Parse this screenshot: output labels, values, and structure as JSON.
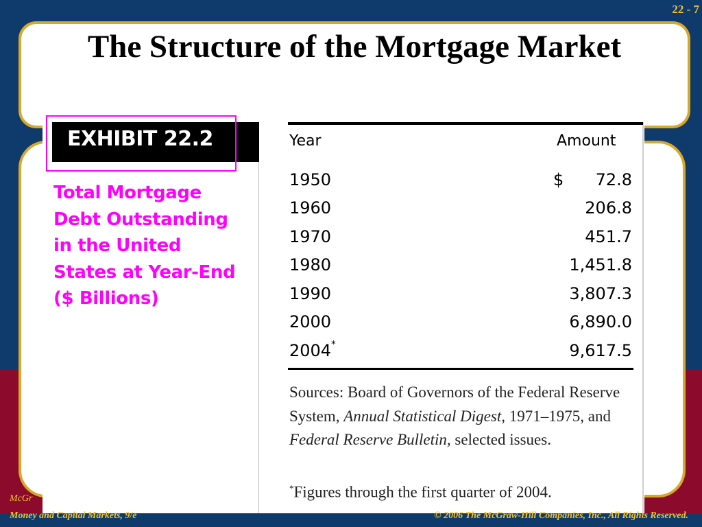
{
  "slide": {
    "number": "22 - 7",
    "title": "The Structure of the Mortgage Market"
  },
  "exhibit": {
    "label": "EXHIBIT 22.2",
    "caption_lines": [
      "Total Mortgage",
      "Debt Outstanding",
      "in the United",
      "States at Year-End",
      "($ Billions)"
    ]
  },
  "table": {
    "headers": {
      "year": "Year",
      "amount": "Amount"
    },
    "currency_symbol": "$",
    "rows": [
      {
        "year": "1950",
        "marker": "",
        "amount": "72.8"
      },
      {
        "year": "1960",
        "marker": "",
        "amount": "206.8"
      },
      {
        "year": "1970",
        "marker": "",
        "amount": "451.7"
      },
      {
        "year": "1980",
        "marker": "",
        "amount": "1,451.8"
      },
      {
        "year": "1990",
        "marker": "",
        "amount": "3,807.3"
      },
      {
        "year": "2000",
        "marker": "",
        "amount": "6,890.0"
      },
      {
        "year": "2004",
        "marker": "*",
        "amount": "9,617.5"
      }
    ]
  },
  "sources": {
    "part1": "Sources: Board of Governors of the Federal Reserve System, ",
    "title1": "Annual Statistical Digest,",
    "part2": " 1971–1975, and ",
    "title2": "Federal Reserve Bulletin,",
    "part3": " selected issues."
  },
  "footnote": {
    "marker": "*",
    "text": "Figures through the first quarter of 2004."
  },
  "footer": {
    "left_top": "McGr",
    "left": "Money and Capital Markets, 9/e",
    "right": "© 2006  The McGraw-Hill Companies, Inc., All Rights Reserved."
  },
  "colors": {
    "background_blue": "#0e3b6b",
    "background_red": "#8c0a2c",
    "border_gold": "#d9a72a",
    "caption_magenta": "#ff00ff",
    "footer_text": "#f1c232"
  }
}
